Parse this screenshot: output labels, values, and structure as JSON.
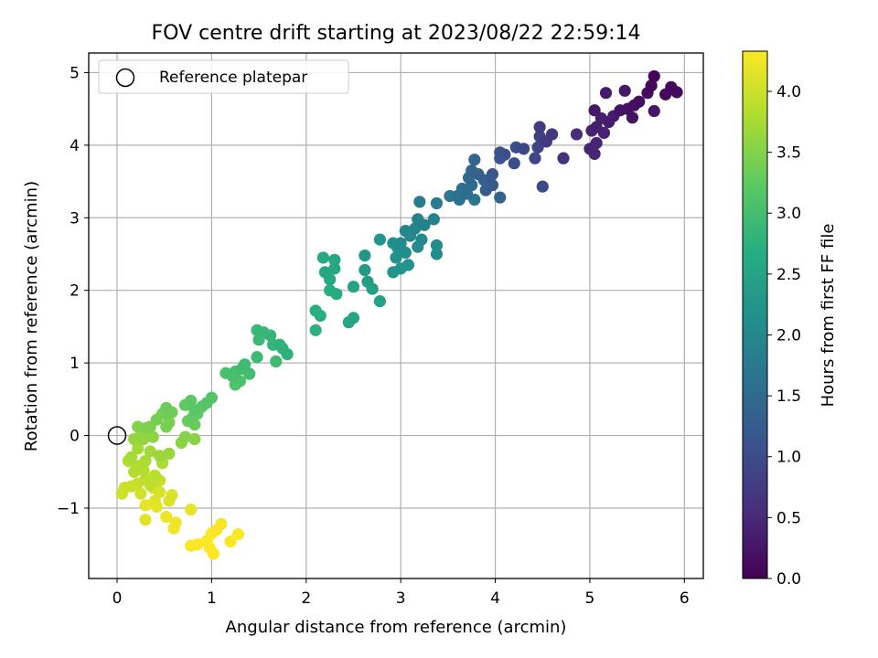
{
  "chart_data": {
    "type": "scatter",
    "title": "FOV centre drift starting at 2023/08/22 22:59:14",
    "xlabel": "Angular distance from reference (arcmin)",
    "ylabel": "Rotation from reference (arcmin)",
    "colorbar_label": "Hours from first FF file",
    "xlim": [
      -0.3,
      6.2
    ],
    "ylim": [
      -1.97,
      5.27
    ],
    "clim": [
      0.0,
      4.33
    ],
    "xticks": [
      0,
      1,
      2,
      3,
      4,
      5,
      6
    ],
    "yticks": [
      -1,
      0,
      1,
      2,
      3,
      4,
      5
    ],
    "cticks": [
      "0.0",
      "0.5",
      "1.0",
      "1.5",
      "2.0",
      "2.5",
      "3.0",
      "3.5",
      "4.0"
    ],
    "colormap": "viridis",
    "grid": true,
    "legend": {
      "placement": "top-left",
      "entries": [
        "Reference platepar"
      ]
    },
    "reference_point": {
      "x": 0,
      "y": 0
    },
    "points": [
      [
        5.68,
        4.95,
        0.05
      ],
      [
        5.65,
        4.82,
        0.06
      ],
      [
        5.86,
        4.8,
        0.08
      ],
      [
        5.8,
        4.7,
        0.1
      ],
      [
        5.92,
        4.73,
        0.12
      ],
      [
        5.61,
        4.72,
        0.14
      ],
      [
        5.52,
        4.6,
        0.16
      ],
      [
        5.47,
        4.55,
        0.18
      ],
      [
        5.4,
        4.5,
        0.2
      ],
      [
        5.32,
        4.48,
        0.22
      ],
      [
        5.45,
        4.38,
        0.24
      ],
      [
        5.68,
        4.47,
        0.26
      ],
      [
        5.37,
        4.75,
        0.28
      ],
      [
        5.17,
        4.72,
        0.3
      ],
      [
        5.25,
        4.4,
        0.32
      ],
      [
        5.2,
        4.32,
        0.34
      ],
      [
        5.12,
        4.37,
        0.36
      ],
      [
        5.07,
        4.25,
        0.38
      ],
      [
        5.15,
        4.17,
        0.4
      ],
      [
        5.05,
        4.48,
        0.27
      ],
      [
        5.02,
        4.2,
        0.42
      ],
      [
        5.0,
        3.95,
        0.44
      ],
      [
        5.07,
        4.03,
        0.46
      ],
      [
        5.05,
        3.88,
        0.48
      ],
      [
        4.86,
        4.15,
        0.55
      ],
      [
        4.72,
        3.82,
        0.62
      ],
      [
        4.6,
        4.15,
        0.68
      ],
      [
        4.54,
        4.05,
        0.72
      ],
      [
        4.47,
        4.25,
        0.78
      ],
      [
        4.47,
        4.12,
        0.82
      ],
      [
        4.45,
        3.97,
        0.86
      ],
      [
        4.42,
        3.82,
        0.9
      ],
      [
        4.3,
        3.95,
        0.94
      ],
      [
        4.22,
        3.97,
        0.98
      ],
      [
        4.2,
        3.75,
        1.02
      ],
      [
        4.1,
        3.87,
        1.06
      ],
      [
        4.05,
        3.9,
        1.1
      ],
      [
        4.5,
        3.43,
        1.0
      ],
      [
        4.05,
        3.82,
        1.14
      ],
      [
        3.97,
        3.6,
        1.18
      ],
      [
        3.97,
        3.45,
        1.22
      ],
      [
        3.9,
        3.38,
        1.26
      ],
      [
        3.88,
        3.52,
        1.3
      ],
      [
        3.82,
        3.6,
        1.34
      ],
      [
        3.78,
        3.8,
        1.38
      ],
      [
        3.75,
        3.65,
        1.42
      ],
      [
        3.72,
        3.55,
        1.46
      ],
      [
        3.75,
        3.45,
        1.5
      ],
      [
        3.7,
        3.33,
        1.54
      ],
      [
        3.65,
        3.4,
        1.58
      ],
      [
        3.6,
        3.3,
        1.62
      ],
      [
        3.62,
        3.25,
        1.66
      ],
      [
        3.78,
        3.25,
        1.7
      ],
      [
        3.52,
        3.3,
        1.74
      ],
      [
        4.05,
        3.28,
        1.36
      ],
      [
        3.38,
        3.2,
        1.78
      ],
      [
        3.2,
        3.22,
        1.82
      ],
      [
        3.18,
        2.98,
        1.86
      ],
      [
        3.25,
        2.9,
        1.9
      ],
      [
        3.15,
        2.85,
        1.94
      ],
      [
        3.05,
        2.82,
        1.98
      ],
      [
        3.35,
        2.98,
        1.92
      ],
      [
        3.1,
        2.75,
        2.0
      ],
      [
        3.22,
        2.7,
        2.02
      ],
      [
        3.18,
        2.6,
        2.04
      ],
      [
        3.0,
        2.65,
        2.06
      ],
      [
        3.38,
        2.62,
        2.08
      ],
      [
        3.38,
        2.5,
        2.1
      ],
      [
        3.05,
        2.52,
        2.12
      ],
      [
        2.97,
        2.58,
        2.14
      ],
      [
        2.92,
        2.65,
        2.16
      ],
      [
        2.95,
        2.45,
        2.18
      ],
      [
        3.08,
        2.35,
        2.2
      ],
      [
        3.0,
        2.3,
        2.22
      ],
      [
        2.92,
        2.25,
        2.24
      ],
      [
        2.78,
        2.7,
        2.26
      ],
      [
        2.62,
        2.48,
        2.3
      ],
      [
        2.62,
        2.28,
        2.34
      ],
      [
        2.65,
        2.12,
        2.38
      ],
      [
        2.7,
        2.02,
        2.42
      ],
      [
        2.78,
        1.85,
        2.46
      ],
      [
        2.5,
        2.05,
        2.5
      ],
      [
        2.45,
        1.56,
        2.52
      ],
      [
        2.5,
        1.62,
        2.54
      ],
      [
        2.3,
        2.42,
        2.56
      ],
      [
        2.3,
        2.3,
        2.58
      ],
      [
        2.2,
        2.25,
        2.6
      ],
      [
        2.18,
        2.45,
        2.62
      ],
      [
        2.25,
        2.15,
        2.64
      ],
      [
        2.32,
        1.95,
        2.66
      ],
      [
        2.25,
        2.0,
        2.68
      ],
      [
        2.1,
        1.72,
        2.7
      ],
      [
        2.15,
        1.65,
        2.72
      ],
      [
        2.1,
        1.45,
        2.74
      ],
      [
        1.8,
        1.12,
        2.76
      ],
      [
        1.75,
        1.2,
        2.78
      ],
      [
        1.72,
        1.25,
        2.8
      ],
      [
        1.65,
        1.25,
        2.82
      ],
      [
        1.62,
        1.38,
        2.84
      ],
      [
        1.55,
        1.42,
        2.86
      ],
      [
        1.48,
        1.45,
        2.88
      ],
      [
        1.5,
        1.32,
        2.9
      ],
      [
        1.48,
        1.08,
        2.92
      ],
      [
        1.68,
        1.02,
        2.94
      ],
      [
        1.35,
        0.98,
        2.96
      ],
      [
        1.32,
        0.92,
        2.98
      ],
      [
        1.4,
        0.85,
        3.0
      ],
      [
        1.25,
        0.88,
        3.02
      ],
      [
        1.22,
        0.82,
        3.04
      ],
      [
        1.15,
        0.86,
        3.06
      ],
      [
        1.3,
        0.75,
        3.08
      ],
      [
        1.25,
        0.7,
        3.1
      ],
      [
        1.0,
        0.52,
        3.14
      ],
      [
        0.95,
        0.45,
        3.16
      ],
      [
        0.9,
        0.4,
        3.18
      ],
      [
        0.82,
        0.35,
        3.2
      ],
      [
        0.78,
        0.48,
        3.22
      ],
      [
        0.72,
        0.42,
        3.24
      ],
      [
        0.85,
        0.3,
        3.26
      ],
      [
        0.8,
        0.25,
        3.28
      ],
      [
        0.75,
        0.2,
        3.3
      ],
      [
        0.82,
        0.15,
        3.32
      ],
      [
        0.52,
        0.38,
        3.34
      ],
      [
        0.58,
        0.32,
        3.36
      ],
      [
        0.48,
        0.3,
        3.38
      ],
      [
        0.42,
        0.22,
        3.4
      ],
      [
        0.55,
        0.18,
        3.42
      ],
      [
        0.52,
        0.12,
        3.44
      ],
      [
        0.35,
        0.12,
        3.46
      ],
      [
        0.3,
        0.1,
        3.48
      ],
      [
        0.22,
        0.12,
        3.5
      ],
      [
        0.72,
        -0.02,
        3.52
      ],
      [
        0.82,
        -0.05,
        3.54
      ],
      [
        0.68,
        -0.1,
        3.56
      ],
      [
        0.38,
        -0.02,
        3.58
      ],
      [
        0.28,
        -0.05,
        3.6
      ],
      [
        0.25,
        0.0,
        3.62
      ],
      [
        0.18,
        -0.05,
        3.64
      ],
      [
        0.55,
        -0.25,
        3.66
      ],
      [
        0.45,
        -0.28,
        3.68
      ],
      [
        0.35,
        -0.22,
        3.7
      ],
      [
        0.22,
        -0.18,
        3.72
      ],
      [
        0.15,
        -0.3,
        3.74
      ],
      [
        0.3,
        -0.35,
        3.76
      ],
      [
        0.48,
        -0.38,
        3.78
      ],
      [
        0.22,
        -0.42,
        3.8
      ],
      [
        0.12,
        -0.35,
        3.82
      ],
      [
        0.18,
        -0.5,
        3.84
      ],
      [
        0.28,
        -0.48,
        3.86
      ],
      [
        0.4,
        -0.55,
        3.88
      ],
      [
        0.3,
        -0.6,
        3.9
      ],
      [
        0.35,
        -0.68,
        3.92
      ],
      [
        0.45,
        -0.62,
        3.94
      ],
      [
        0.22,
        -0.66,
        3.96
      ],
      [
        0.15,
        -0.7,
        3.98
      ],
      [
        0.08,
        -0.72,
        4.0
      ],
      [
        0.05,
        -0.8,
        4.02
      ],
      [
        0.25,
        -0.8,
        4.04
      ],
      [
        0.38,
        -0.72,
        4.06
      ],
      [
        0.45,
        -0.78,
        4.08
      ],
      [
        0.58,
        -0.82,
        4.1
      ],
      [
        0.55,
        -0.9,
        4.12
      ],
      [
        0.4,
        -0.9,
        4.14
      ],
      [
        0.3,
        -0.96,
        4.16
      ],
      [
        0.42,
        -0.98,
        4.18
      ],
      [
        0.78,
        -1.02,
        4.2
      ],
      [
        0.52,
        -1.12,
        4.22
      ],
      [
        0.62,
        -1.2,
        4.24
      ],
      [
        0.6,
        -1.28,
        4.26
      ],
      [
        0.3,
        -1.16,
        4.14
      ],
      [
        1.1,
        -1.22,
        4.28
      ],
      [
        1.05,
        -1.3,
        4.3
      ],
      [
        1.0,
        -1.35,
        4.31
      ],
      [
        1.28,
        -1.36,
        4.32
      ],
      [
        1.2,
        -1.46,
        4.32
      ],
      [
        0.95,
        -1.45,
        4.32
      ],
      [
        0.85,
        -1.5,
        4.33
      ],
      [
        0.78,
        -1.52,
        4.33
      ],
      [
        0.98,
        -1.55,
        4.33
      ],
      [
        1.02,
        -1.63,
        4.33
      ]
    ]
  }
}
